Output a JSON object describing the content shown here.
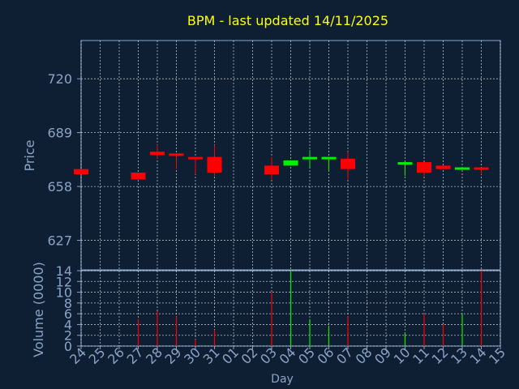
{
  "chart_data": [
    {
      "type": "candlestick",
      "title": "BPM - last updated 14/11/2025",
      "ylabel": "Price",
      "xlabel": "Day",
      "ylim": [
        610,
        742
      ],
      "yticks": [
        627,
        658,
        689,
        720
      ],
      "grid": true,
      "colors": {
        "up": "#00ee00",
        "down": "#ff0000",
        "title": "#ffff00",
        "axis_text": "#8aa4c8",
        "background": "#0f1f33",
        "grid": "#ffffff"
      },
      "x": [
        "24",
        "25",
        "26",
        "27",
        "28",
        "29",
        "30",
        "31",
        "01",
        "02",
        "03",
        "04",
        "05",
        "06",
        "07",
        "08",
        "09",
        "10",
        "11",
        "12",
        "13",
        "14",
        "15"
      ],
      "candles": [
        {
          "day": "24",
          "open": 668,
          "close": 665,
          "high": 668,
          "low": 665
        },
        {
          "day": "27",
          "open": 666,
          "close": 662,
          "high": 666,
          "low": 662
        },
        {
          "day": "28",
          "open": 678,
          "close": 676,
          "high": 682,
          "low": 674
        },
        {
          "day": "29",
          "open": 677,
          "close": 676,
          "high": 677,
          "low": 668
        },
        {
          "day": "30",
          "open": 675,
          "close": 674,
          "high": 675,
          "low": 665
        },
        {
          "day": "31",
          "open": 675,
          "close": 666,
          "high": 682,
          "low": 664
        },
        {
          "day": "03",
          "open": 670,
          "close": 665,
          "high": 675,
          "low": 662
        },
        {
          "day": "04",
          "open": 670,
          "close": 673,
          "high": 673,
          "low": 670
        },
        {
          "day": "05",
          "open": 674,
          "close": 675,
          "high": 679,
          "low": 669
        },
        {
          "day": "06",
          "open": 674,
          "close": 675,
          "high": 675,
          "low": 667
        },
        {
          "day": "07",
          "open": 674,
          "close": 668,
          "high": 678,
          "low": 662
        },
        {
          "day": "10",
          "open": 671,
          "close": 672,
          "high": 672,
          "low": 664
        },
        {
          "day": "11",
          "open": 672,
          "close": 666,
          "high": 672,
          "low": 664
        },
        {
          "day": "12",
          "open": 670,
          "close": 668,
          "high": 670,
          "low": 668
        },
        {
          "day": "13",
          "open": 668,
          "close": 669,
          "high": 669,
          "low": 668
        },
        {
          "day": "14",
          "open": 669,
          "close": 668,
          "high": 669,
          "low": 665
        }
      ]
    },
    {
      "type": "bar",
      "ylabel": "Volume (0000)",
      "xlabel": "Day",
      "ylim": [
        0,
        14
      ],
      "yticks": [
        0,
        2,
        4,
        6,
        8,
        10,
        12,
        14
      ],
      "x": [
        "24",
        "25",
        "26",
        "27",
        "28",
        "29",
        "30",
        "31",
        "01",
        "02",
        "03",
        "04",
        "05",
        "06",
        "07",
        "08",
        "09",
        "10",
        "11",
        "12",
        "13",
        "14",
        "15"
      ],
      "bars": [
        {
          "day": "27",
          "value": 5,
          "dir": "down"
        },
        {
          "day": "28",
          "value": 6.5,
          "dir": "down"
        },
        {
          "day": "29",
          "value": 5.5,
          "dir": "down"
        },
        {
          "day": "30",
          "value": 1.2,
          "dir": "down"
        },
        {
          "day": "31",
          "value": 3,
          "dir": "down"
        },
        {
          "day": "03",
          "value": 10,
          "dir": "down"
        },
        {
          "day": "04",
          "value": 14,
          "dir": "up"
        },
        {
          "day": "05",
          "value": 5,
          "dir": "up"
        },
        {
          "day": "06",
          "value": 3.5,
          "dir": "up"
        },
        {
          "day": "07",
          "value": 5.5,
          "dir": "down"
        },
        {
          "day": "10",
          "value": 2.5,
          "dir": "up"
        },
        {
          "day": "11",
          "value": 6,
          "dir": "down"
        },
        {
          "day": "12",
          "value": 4,
          "dir": "down"
        },
        {
          "day": "13",
          "value": 6,
          "dir": "up"
        },
        {
          "day": "14",
          "value": 14,
          "dir": "down"
        }
      ]
    }
  ]
}
